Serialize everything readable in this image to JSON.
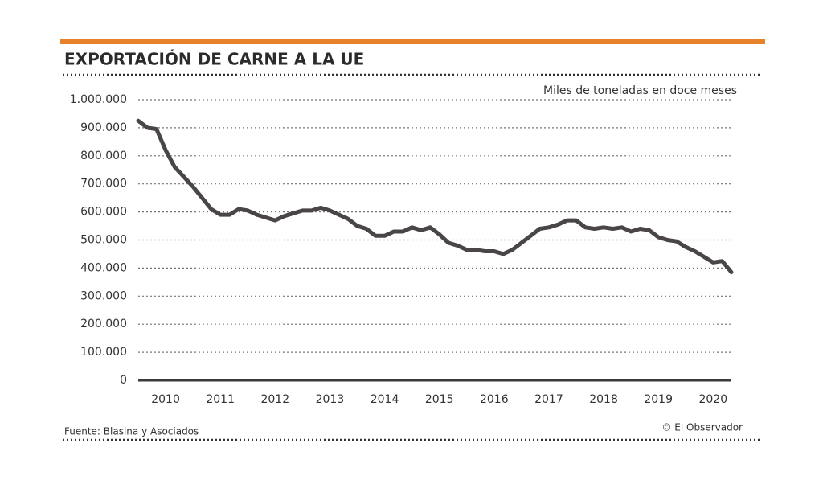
{
  "chart_data": {
    "type": "line",
    "title": "EXPORTACIÓN DE CARNE A LA UE",
    "subtitle": "Miles de toneladas en doce meses",
    "source": "Fuente: Blasina y Asociados",
    "credit": "© El Observador",
    "categories": [
      null,
      null,
      null,
      "2010",
      null,
      null,
      null,
      null,
      null,
      "2011",
      null,
      null,
      null,
      null,
      null,
      "2012",
      null,
      null,
      null,
      null,
      null,
      "2013",
      null,
      null,
      null,
      null,
      null,
      "2014",
      null,
      null,
      null,
      null,
      null,
      "2015",
      null,
      null,
      null,
      null,
      null,
      "2016",
      null,
      null,
      null,
      null,
      null,
      "2017",
      null,
      null,
      null,
      null,
      null,
      "2018",
      null,
      null,
      null,
      null,
      null,
      "2019",
      null,
      null,
      null,
      null,
      null,
      "2020",
      null,
      null
    ],
    "values": [
      925000,
      900000,
      895000,
      820000,
      760000,
      725000,
      690000,
      650000,
      610000,
      590000,
      590000,
      610000,
      605000,
      590000,
      580000,
      570000,
      585000,
      595000,
      605000,
      605000,
      615000,
      605000,
      590000,
      575000,
      550000,
      540000,
      515000,
      515000,
      530000,
      530000,
      545000,
      535000,
      545000,
      520000,
      490000,
      480000,
      465000,
      465000,
      460000,
      460000,
      450000,
      465000,
      490000,
      515000,
      540000,
      545000,
      555000,
      570000,
      570000,
      545000,
      540000,
      545000,
      540000,
      545000,
      530000,
      540000,
      535000,
      510000,
      500000,
      495000,
      475000,
      460000,
      440000,
      420000,
      425000,
      385000
    ],
    "color": "#4a4646",
    "ylim": [
      0,
      1000000
    ],
    "yticks": [
      0,
      {
        "value": 100000,
        "label": "100.000"
      },
      {
        "value": 200000,
        "label": "200.000"
      },
      {
        "value": 300000,
        "label": "300.000"
      },
      {
        "value": 400000,
        "label": "400.000"
      },
      {
        "value": 500000,
        "label": "500.000"
      },
      {
        "value": 600000,
        "label": "600.000"
      },
      {
        "value": 700000,
        "label": "700.000"
      },
      {
        "value": 800000,
        "label": "800.000"
      },
      {
        "value": 900000,
        "label": "900.000"
      },
      {
        "value": 1000000,
        "label": "1.000.000"
      }
    ],
    "grid": true
  }
}
